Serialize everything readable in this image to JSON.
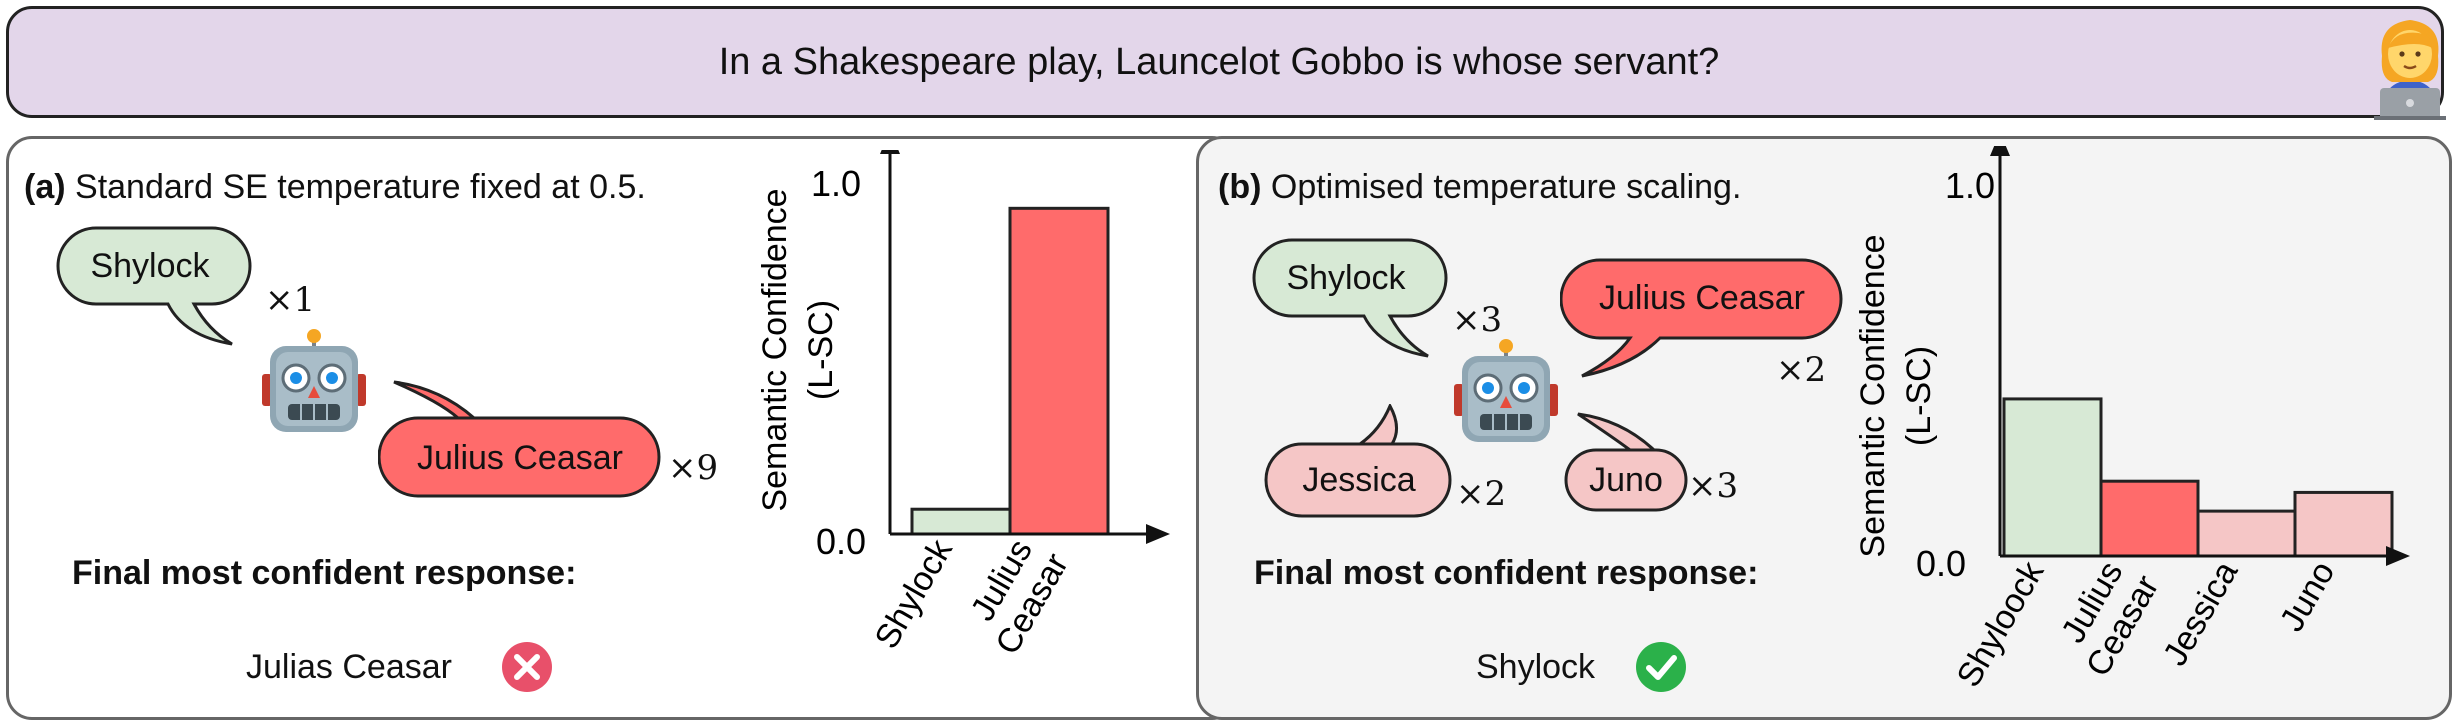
{
  "question": "In a Shakespeare play, Launcelot Gobbo is whose servant?",
  "user_avatar_icon": "woman-technologist-icon",
  "robot_icon": "robot-face-icon",
  "colors": {
    "green_bubble": "#d7e9d5",
    "red_bubble": "#ff6b6b",
    "pink_bubble": "#f5c6c6",
    "question_bg": "#e3d6ea",
    "panel_b_bg": "#f4f4f4",
    "cross": "#e8506a",
    "check": "#2bb14a"
  },
  "panel_a": {
    "tag": "(a)",
    "title": "Standard SE temperature fixed at 0.5.",
    "bubbles": [
      {
        "label": "Shylock",
        "mult": "×1"
      },
      {
        "label": "Julius Ceasar",
        "mult": "×9"
      }
    ],
    "final_label": "Final most confident response:",
    "final_answer": "Julias Ceasar",
    "final_icon": "cross-icon"
  },
  "panel_b": {
    "tag": "(b)",
    "title": "Optimised temperature scaling.",
    "bubbles": [
      {
        "label": "Shylock",
        "mult": "×3"
      },
      {
        "label": "Julius Ceasar",
        "mult": "×2"
      },
      {
        "label": "Jessica",
        "mult": "×2"
      },
      {
        "label": "Juno",
        "mult": "×3"
      }
    ],
    "final_label": "Final most confident response:",
    "final_answer": "Shylock",
    "final_icon": "check-icon"
  },
  "chart_data": [
    {
      "type": "bar",
      "ylabel_line1": "Semantic Confidence",
      "ylabel_line2": "(L-SC)",
      "ytick_top": "1.0",
      "ytick_bottom": "0.0",
      "ylim": [
        0,
        1
      ],
      "categories": [
        {
          "l1": "Shylock",
          "l2": ""
        },
        {
          "l1": "Julius",
          "l2": "Ceasar"
        }
      ],
      "values": [
        0.07,
        0.92
      ],
      "colors": [
        "#d7e9d5",
        "#ff6b6b"
      ]
    },
    {
      "type": "bar",
      "ylabel_line1": "Semantic Confidence",
      "ylabel_line2": "(L-SC)",
      "ytick_top": "1.0",
      "ytick_bottom": "0.0",
      "ylim": [
        0,
        1
      ],
      "categories": [
        {
          "l1": "Shyloock",
          "l2": ""
        },
        {
          "l1": "Julius",
          "l2": "Ceasar"
        },
        {
          "l1": "Jessica",
          "l2": ""
        },
        {
          "l1": "Juno",
          "l2": ""
        }
      ],
      "values": [
        0.42,
        0.2,
        0.12,
        0.17
      ],
      "colors": [
        "#d7e9d5",
        "#ff6b6b",
        "#f5c6c6",
        "#f5c6c6"
      ]
    }
  ]
}
